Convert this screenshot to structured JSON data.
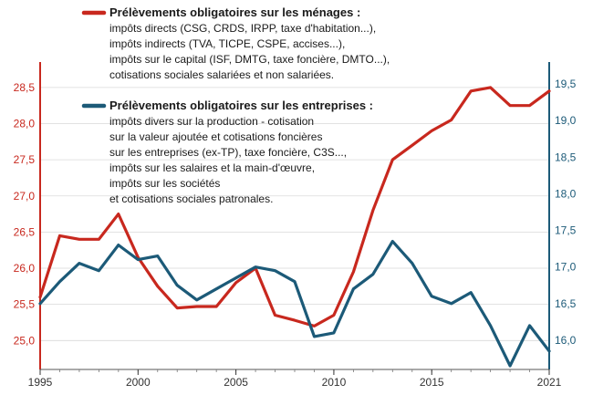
{
  "chart_data": {
    "type": "line",
    "title": "",
    "xlabel": "",
    "x": [
      1995,
      1996,
      1997,
      1998,
      1999,
      2000,
      2001,
      2002,
      2003,
      2004,
      2005,
      2006,
      2007,
      2008,
      2009,
      2010,
      2011,
      2012,
      2013,
      2014,
      2015,
      2016,
      2017,
      2018,
      2019,
      2020,
      2021
    ],
    "x_ticks": [
      "1995",
      "2000",
      "2005",
      "2010",
      "2015",
      "2021"
    ],
    "left_axis": {
      "ylim": [
        24.6,
        28.7
      ],
      "ticks": [
        "25,0",
        "25,5",
        "26,0",
        "26,5",
        "27,0",
        "27,5",
        "28,0",
        "28,5"
      ],
      "color": "#c8281e"
    },
    "right_axis": {
      "ylim": [
        15.6,
        19.65
      ],
      "ticks": [
        "16,0",
        "16,5",
        "17,0",
        "17,5",
        "18,0",
        "18,5",
        "19,0",
        "19,5"
      ],
      "color": "#1c5a78"
    },
    "series": [
      {
        "name": "Prélèvements obligatoires sur les ménages :",
        "axis": "left",
        "color": "#c8281e",
        "description": [
          "impôts directs (CSG, CRDS, IRPP, taxe d'habitation...),",
          "impôts indirects (TVA, TICPE, CSPE, accises...),",
          "impôts sur le capital (ISF, DMTG, taxe foncière, DMTO...),",
          "cotisations sociales salariées et non salariées."
        ],
        "values": [
          25.6,
          26.45,
          26.4,
          26.4,
          26.75,
          26.15,
          25.75,
          25.45,
          25.47,
          25.47,
          25.8,
          26.0,
          25.35,
          25.28,
          25.2,
          25.35,
          25.95,
          26.8,
          27.5,
          27.7,
          27.9,
          28.05,
          28.45,
          28.5,
          28.25,
          28.25,
          28.45
        ]
      },
      {
        "name": "Prélèvements obligatoires sur les entreprises :",
        "axis": "right",
        "color": "#1c5a78",
        "description": [
          "impôts divers sur la production - cotisation",
          "sur la valeur ajoutée et cotisations foncières",
          "sur les entreprises (ex-TP), taxe foncière, C3S...,",
          "impôts sur les salaires et la main-d'œuvre,",
          "impôts sur les sociétés",
          "et cotisations sociales patronales."
        ],
        "values": [
          16.5,
          16.8,
          17.05,
          16.95,
          17.3,
          17.1,
          17.15,
          16.75,
          16.55,
          16.7,
          16.85,
          17.0,
          16.95,
          16.8,
          16.05,
          16.1,
          16.7,
          16.9,
          17.35,
          17.05,
          16.6,
          16.5,
          16.65,
          16.2,
          15.65,
          16.2,
          15.85
        ]
      }
    ]
  }
}
